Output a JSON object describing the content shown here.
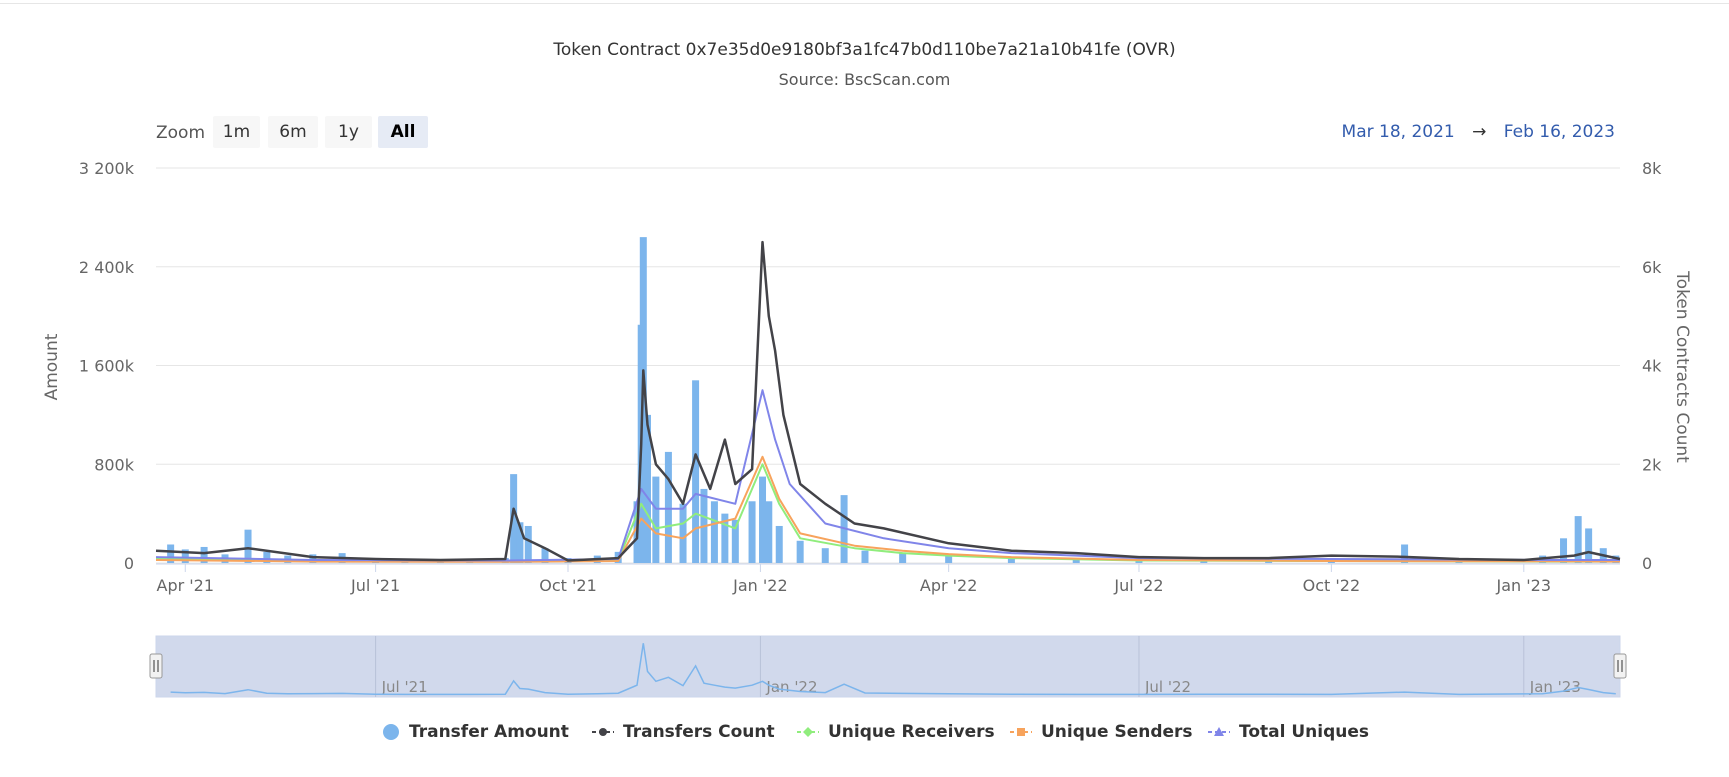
{
  "header": {
    "title": "Token Contract 0x7e35d0e9180bf3a1fc47b0d110be7a21a10b41fe (OVR)",
    "subtitle": "Source: BscScan.com"
  },
  "zoom": {
    "label": "Zoom",
    "buttons": [
      "1m",
      "6m",
      "1y",
      "All"
    ],
    "active": "All"
  },
  "range": {
    "from": "Mar 18, 2021",
    "arrow": "→",
    "to": "Feb 16, 2023"
  },
  "colors": {
    "transfer_amount": "#7cb5ec",
    "transfers_count": "#434348",
    "unique_receivers": "#90ed7d",
    "unique_senders": "#f7a35c",
    "total_uniques": "#8085e9",
    "navigator_fill": "#d1d9ec",
    "axis_label": "#666666"
  },
  "chart_data": {
    "type": "bar+line",
    "title": "Token Contract 0x7e35d0e9180bf3a1fc47b0d110be7a21a10b41fe (OVR)",
    "subtitle": "Source: BscScan.com",
    "y_left": {
      "label": "Amount",
      "ticks": [
        "0",
        "800k",
        "1 600k",
        "2 400k",
        "3 200k"
      ],
      "range": [
        0,
        3200000
      ]
    },
    "y_right": {
      "label": "Token Contracts Count",
      "ticks": [
        "0",
        "2k",
        "4k",
        "6k",
        "8k"
      ],
      "range": [
        0,
        8000
      ]
    },
    "x_ticks": [
      "Apr '21",
      "Jul '21",
      "Oct '21",
      "Jan '22",
      "Apr '22",
      "Jul '22",
      "Oct '22",
      "Jan '23"
    ],
    "x_range": [
      "2021-03-18",
      "2023-02-16"
    ],
    "navigator_ticks": [
      "Jul '21",
      "Jan '22",
      "Jul '22",
      "Jan '23"
    ],
    "grid": true,
    "legend_position": "bottom",
    "series": [
      {
        "name": "Transfer Amount",
        "axis": "left",
        "type": "column",
        "points": [
          [
            "2021-03-25",
            150000
          ],
          [
            "2021-04-01",
            110000
          ],
          [
            "2021-04-10",
            130000
          ],
          [
            "2021-04-20",
            70000
          ],
          [
            "2021-05-01",
            270000
          ],
          [
            "2021-05-10",
            90000
          ],
          [
            "2021-05-20",
            60000
          ],
          [
            "2021-06-01",
            70000
          ],
          [
            "2021-06-15",
            80000
          ],
          [
            "2021-07-01",
            40000
          ],
          [
            "2021-07-15",
            30000
          ],
          [
            "2021-08-01",
            30000
          ],
          [
            "2021-08-15",
            30000
          ],
          [
            "2021-09-01",
            40000
          ],
          [
            "2021-09-05",
            720000
          ],
          [
            "2021-09-08",
            330000
          ],
          [
            "2021-09-12",
            300000
          ],
          [
            "2021-09-20",
            120000
          ],
          [
            "2021-10-01",
            40000
          ],
          [
            "2021-10-15",
            60000
          ],
          [
            "2021-10-25",
            90000
          ],
          [
            "2021-11-03",
            500000
          ],
          [
            "2021-11-05",
            1930000
          ],
          [
            "2021-11-06",
            2640000
          ],
          [
            "2021-11-08",
            1200000
          ],
          [
            "2021-11-12",
            700000
          ],
          [
            "2021-11-18",
            900000
          ],
          [
            "2021-11-25",
            480000
          ],
          [
            "2021-12-01",
            1480000
          ],
          [
            "2021-12-05",
            600000
          ],
          [
            "2021-12-10",
            500000
          ],
          [
            "2021-12-15",
            400000
          ],
          [
            "2021-12-20",
            350000
          ],
          [
            "2021-12-28",
            500000
          ],
          [
            "2022-01-02",
            700000
          ],
          [
            "2022-01-05",
            500000
          ],
          [
            "2022-01-10",
            300000
          ],
          [
            "2022-01-20",
            180000
          ],
          [
            "2022-02-01",
            120000
          ],
          [
            "2022-02-10",
            550000
          ],
          [
            "2022-02-20",
            100000
          ],
          [
            "2022-03-10",
            80000
          ],
          [
            "2022-04-01",
            60000
          ],
          [
            "2022-05-01",
            40000
          ],
          [
            "2022-06-01",
            30000
          ],
          [
            "2022-07-01",
            30000
          ],
          [
            "2022-08-01",
            40000
          ],
          [
            "2022-09-01",
            40000
          ],
          [
            "2022-10-01",
            30000
          ],
          [
            "2022-11-05",
            150000
          ],
          [
            "2022-12-01",
            30000
          ],
          [
            "2023-01-10",
            60000
          ],
          [
            "2023-01-20",
            200000
          ],
          [
            "2023-01-27",
            380000
          ],
          [
            "2023-02-01",
            280000
          ],
          [
            "2023-02-08",
            120000
          ],
          [
            "2023-02-14",
            60000
          ]
        ]
      },
      {
        "name": "Transfers Count",
        "axis": "right",
        "type": "line",
        "points": [
          [
            "2021-03-18",
            250
          ],
          [
            "2021-04-10",
            200
          ],
          [
            "2021-05-01",
            300
          ],
          [
            "2021-06-01",
            120
          ],
          [
            "2021-07-01",
            80
          ],
          [
            "2021-08-01",
            60
          ],
          [
            "2021-09-01",
            80
          ],
          [
            "2021-09-05",
            1100
          ],
          [
            "2021-09-10",
            500
          ],
          [
            "2021-09-20",
            300
          ],
          [
            "2021-10-01",
            50
          ],
          [
            "2021-10-25",
            100
          ],
          [
            "2021-11-03",
            500
          ],
          [
            "2021-11-05",
            2400
          ],
          [
            "2021-11-06",
            3900
          ],
          [
            "2021-11-08",
            2800
          ],
          [
            "2021-11-12",
            2000
          ],
          [
            "2021-11-18",
            1700
          ],
          [
            "2021-11-25",
            1200
          ],
          [
            "2021-12-01",
            2200
          ],
          [
            "2021-12-08",
            1500
          ],
          [
            "2021-12-15",
            2500
          ],
          [
            "2021-12-20",
            1600
          ],
          [
            "2021-12-28",
            1900
          ],
          [
            "2022-01-02",
            6500
          ],
          [
            "2022-01-05",
            5000
          ],
          [
            "2022-01-08",
            4300
          ],
          [
            "2022-01-12",
            3000
          ],
          [
            "2022-01-20",
            1600
          ],
          [
            "2022-02-01",
            1200
          ],
          [
            "2022-02-15",
            800
          ],
          [
            "2022-03-01",
            700
          ],
          [
            "2022-04-01",
            400
          ],
          [
            "2022-05-01",
            250
          ],
          [
            "2022-06-01",
            200
          ],
          [
            "2022-07-01",
            120
          ],
          [
            "2022-08-01",
            100
          ],
          [
            "2022-09-01",
            100
          ],
          [
            "2022-10-01",
            150
          ],
          [
            "2022-11-01",
            130
          ],
          [
            "2022-12-01",
            80
          ],
          [
            "2023-01-01",
            60
          ],
          [
            "2023-01-25",
            150
          ],
          [
            "2023-02-01",
            220
          ],
          [
            "2023-02-16",
            80
          ]
        ]
      },
      {
        "name": "Unique Receivers",
        "axis": "right",
        "type": "line",
        "points": [
          [
            "2021-03-18",
            80
          ],
          [
            "2021-06-01",
            40
          ],
          [
            "2021-09-01",
            30
          ],
          [
            "2021-10-25",
            50
          ],
          [
            "2021-11-05",
            1200
          ],
          [
            "2021-11-12",
            700
          ],
          [
            "2021-11-25",
            800
          ],
          [
            "2021-12-01",
            1000
          ],
          [
            "2021-12-20",
            700
          ],
          [
            "2022-01-02",
            2000
          ],
          [
            "2022-01-10",
            1200
          ],
          [
            "2022-01-20",
            500
          ],
          [
            "2022-02-15",
            300
          ],
          [
            "2022-03-10",
            200
          ],
          [
            "2022-04-01",
            150
          ],
          [
            "2022-05-01",
            100
          ],
          [
            "2022-07-01",
            50
          ],
          [
            "2022-10-01",
            40
          ],
          [
            "2023-01-15",
            30
          ],
          [
            "2023-02-16",
            30
          ]
        ]
      },
      {
        "name": "Unique Senders",
        "axis": "right",
        "type": "line",
        "points": [
          [
            "2021-03-18",
            60
          ],
          [
            "2021-06-01",
            30
          ],
          [
            "2021-09-01",
            25
          ],
          [
            "2021-10-25",
            40
          ],
          [
            "2021-11-05",
            900
          ],
          [
            "2021-11-12",
            600
          ],
          [
            "2021-11-25",
            500
          ],
          [
            "2021-12-01",
            700
          ],
          [
            "2021-12-20",
            900
          ],
          [
            "2022-01-02",
            2150
          ],
          [
            "2022-01-10",
            1300
          ],
          [
            "2022-01-20",
            600
          ],
          [
            "2022-02-15",
            350
          ],
          [
            "2022-03-10",
            250
          ],
          [
            "2022-04-01",
            180
          ],
          [
            "2022-05-01",
            120
          ],
          [
            "2022-07-01",
            60
          ],
          [
            "2022-10-01",
            40
          ],
          [
            "2023-01-15",
            35
          ],
          [
            "2023-02-16",
            30
          ]
        ]
      },
      {
        "name": "Total Uniques",
        "axis": "right",
        "type": "line",
        "points": [
          [
            "2021-03-18",
            120
          ],
          [
            "2021-06-01",
            60
          ],
          [
            "2021-09-01",
            50
          ],
          [
            "2021-10-25",
            80
          ],
          [
            "2021-11-05",
            1500
          ],
          [
            "2021-11-12",
            1100
          ],
          [
            "2021-11-25",
            1100
          ],
          [
            "2021-12-01",
            1400
          ],
          [
            "2021-12-20",
            1200
          ],
          [
            "2022-01-02",
            3500
          ],
          [
            "2022-01-08",
            2500
          ],
          [
            "2022-01-15",
            1600
          ],
          [
            "2022-02-01",
            800
          ],
          [
            "2022-03-01",
            500
          ],
          [
            "2022-04-01",
            300
          ],
          [
            "2022-05-01",
            200
          ],
          [
            "2022-07-01",
            100
          ],
          [
            "2022-10-01",
            80
          ],
          [
            "2023-01-15",
            60
          ],
          [
            "2023-02-16",
            60
          ]
        ]
      }
    ]
  }
}
